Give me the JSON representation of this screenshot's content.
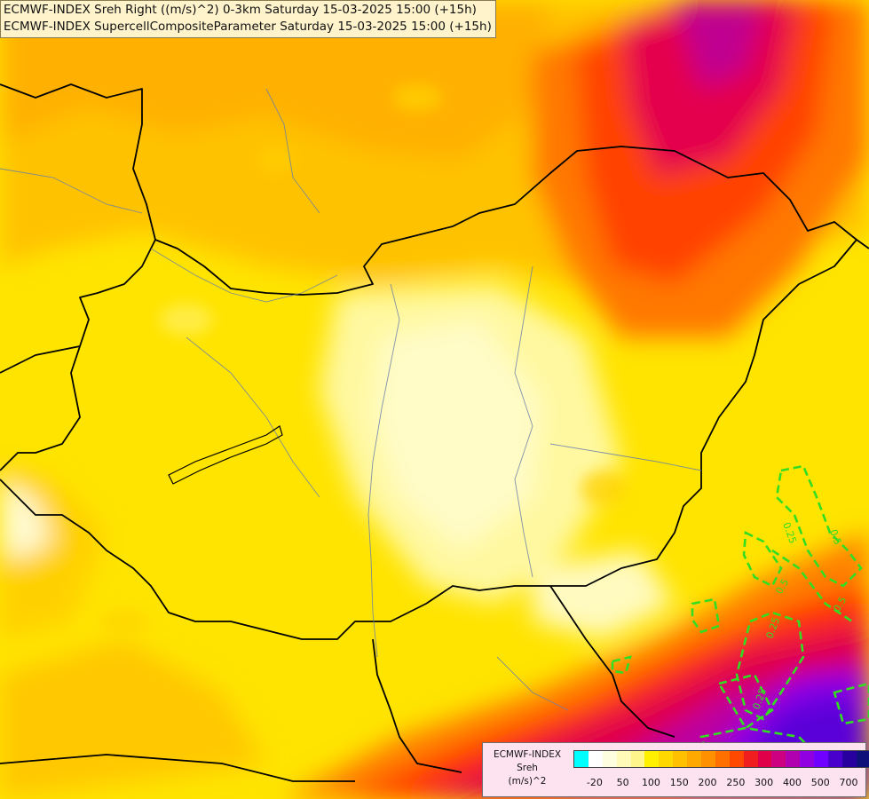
{
  "header": {
    "line1": "ECMWF-INDEX Sreh Right ((m/s)^2) 0-3km Saturday 15-03-2025 15:00 (+15h)",
    "line2": "ECMWF-INDEX SupercellCompositeParameter Saturday 15-03-2025 15:00 (+15h)"
  },
  "legend": {
    "model": "ECMWF-INDEX",
    "variable": "Sreh",
    "unit": "(m/s)^2",
    "colors": [
      "#00ffff",
      "#ffffff",
      "#fffde0",
      "#fffab8",
      "#fff58a",
      "#fff000",
      "#ffd800",
      "#ffc000",
      "#ffa800",
      "#ff9000",
      "#ff7000",
      "#ff4800",
      "#f01e1e",
      "#e0004a",
      "#cc0080",
      "#b000b0",
      "#9000e0",
      "#7000ff",
      "#4a00cc",
      "#2800a0",
      "#10107a"
    ],
    "ticks": [
      "-20",
      "50",
      "100",
      "150",
      "200",
      "250",
      "300",
      "400",
      "500",
      "700"
    ]
  },
  "overlay": {
    "contour_labels": [
      "0.25",
      "0.5",
      "0.5",
      "0.25",
      "0.25",
      "0.5"
    ],
    "contour_color": "#33dd22"
  }
}
